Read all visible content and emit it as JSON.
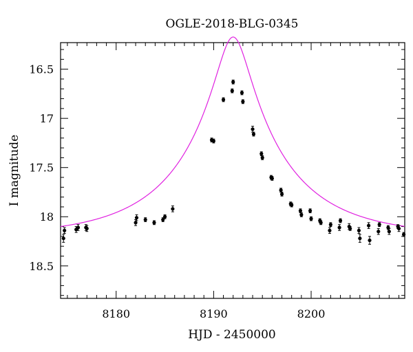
{
  "chart_data": {
    "type": "scatter",
    "title": "OGLE-2018-BLG-0345",
    "xlabel": "HJD - 2450000",
    "ylabel": "I magnitude",
    "xlim": [
      8174.3,
      8209.6
    ],
    "ylim": [
      18.83,
      16.23
    ],
    "y_inverted": true,
    "grid": false,
    "x_ticks": [
      8180,
      8190,
      8200
    ],
    "x_tick_labels": [
      "8180",
      "8190",
      "8200"
    ],
    "y_ticks": [
      16.5,
      17,
      17.5,
      18,
      18.5
    ],
    "y_tick_labels": [
      "16.5",
      "17",
      "17.5",
      "18",
      "18.5"
    ],
    "colors": {
      "model": "#e020e0",
      "points": "#000000"
    },
    "model": {
      "t0": 8192.0,
      "u0": 0.156,
      "tE": 10.5,
      "baseline": 18.2
    },
    "series": [
      {
        "type": "scatter-errorbar",
        "x": [
          8174.6,
          8174.7,
          8175.9,
          8176.1,
          8176.9,
          8177.0,
          8182.0,
          8182.1,
          8183.0,
          8183.9,
          8184.8,
          8185.0,
          8185.8,
          8189.8,
          8190.0,
          8191.0,
          8191.9,
          8192.0,
          8192.9,
          8193.0,
          8194.0,
          8194.1,
          8194.9,
          8195.0,
          8195.9,
          8196.0,
          8196.9,
          8197.0,
          8197.9,
          8198.0,
          8198.9,
          8199.0,
          8199.9,
          8200.0,
          8200.9,
          8201.0,
          8201.9,
          8202.0,
          8202.9,
          8203.0,
          8203.9,
          8204.0,
          8204.9,
          8205.0,
          8205.9,
          8206.0,
          8206.9,
          8207.0,
          8207.9,
          8208.0,
          8208.9,
          8209.0,
          8209.5
        ],
        "y": [
          18.22,
          18.14,
          18.13,
          18.11,
          18.11,
          18.12,
          18.06,
          18.01,
          18.03,
          18.06,
          18.03,
          18.0,
          17.92,
          17.22,
          17.23,
          16.81,
          16.72,
          16.63,
          16.74,
          16.83,
          17.11,
          17.16,
          17.36,
          17.4,
          17.6,
          17.61,
          17.73,
          17.77,
          17.87,
          17.88,
          17.94,
          17.98,
          17.94,
          18.02,
          18.04,
          18.06,
          18.14,
          18.08,
          18.11,
          18.04,
          18.1,
          18.12,
          18.14,
          18.22,
          18.09,
          18.24,
          18.15,
          18.08,
          18.11,
          18.15,
          18.1,
          18.12,
          18.18
        ],
        "err": [
          0.04,
          0.03,
          0.03,
          0.03,
          0.03,
          0.03,
          0.03,
          0.03,
          0.02,
          0.02,
          0.02,
          0.02,
          0.03,
          0.02,
          0.02,
          0.02,
          0.02,
          0.02,
          0.02,
          0.02,
          0.03,
          0.02,
          0.02,
          0.02,
          0.02,
          0.02,
          0.02,
          0.02,
          0.02,
          0.02,
          0.02,
          0.02,
          0.02,
          0.02,
          0.02,
          0.02,
          0.03,
          0.02,
          0.03,
          0.02,
          0.03,
          0.02,
          0.03,
          0.04,
          0.03,
          0.04,
          0.03,
          0.02,
          0.02,
          0.03,
          0.02,
          0.03,
          0.02
        ]
      }
    ]
  }
}
